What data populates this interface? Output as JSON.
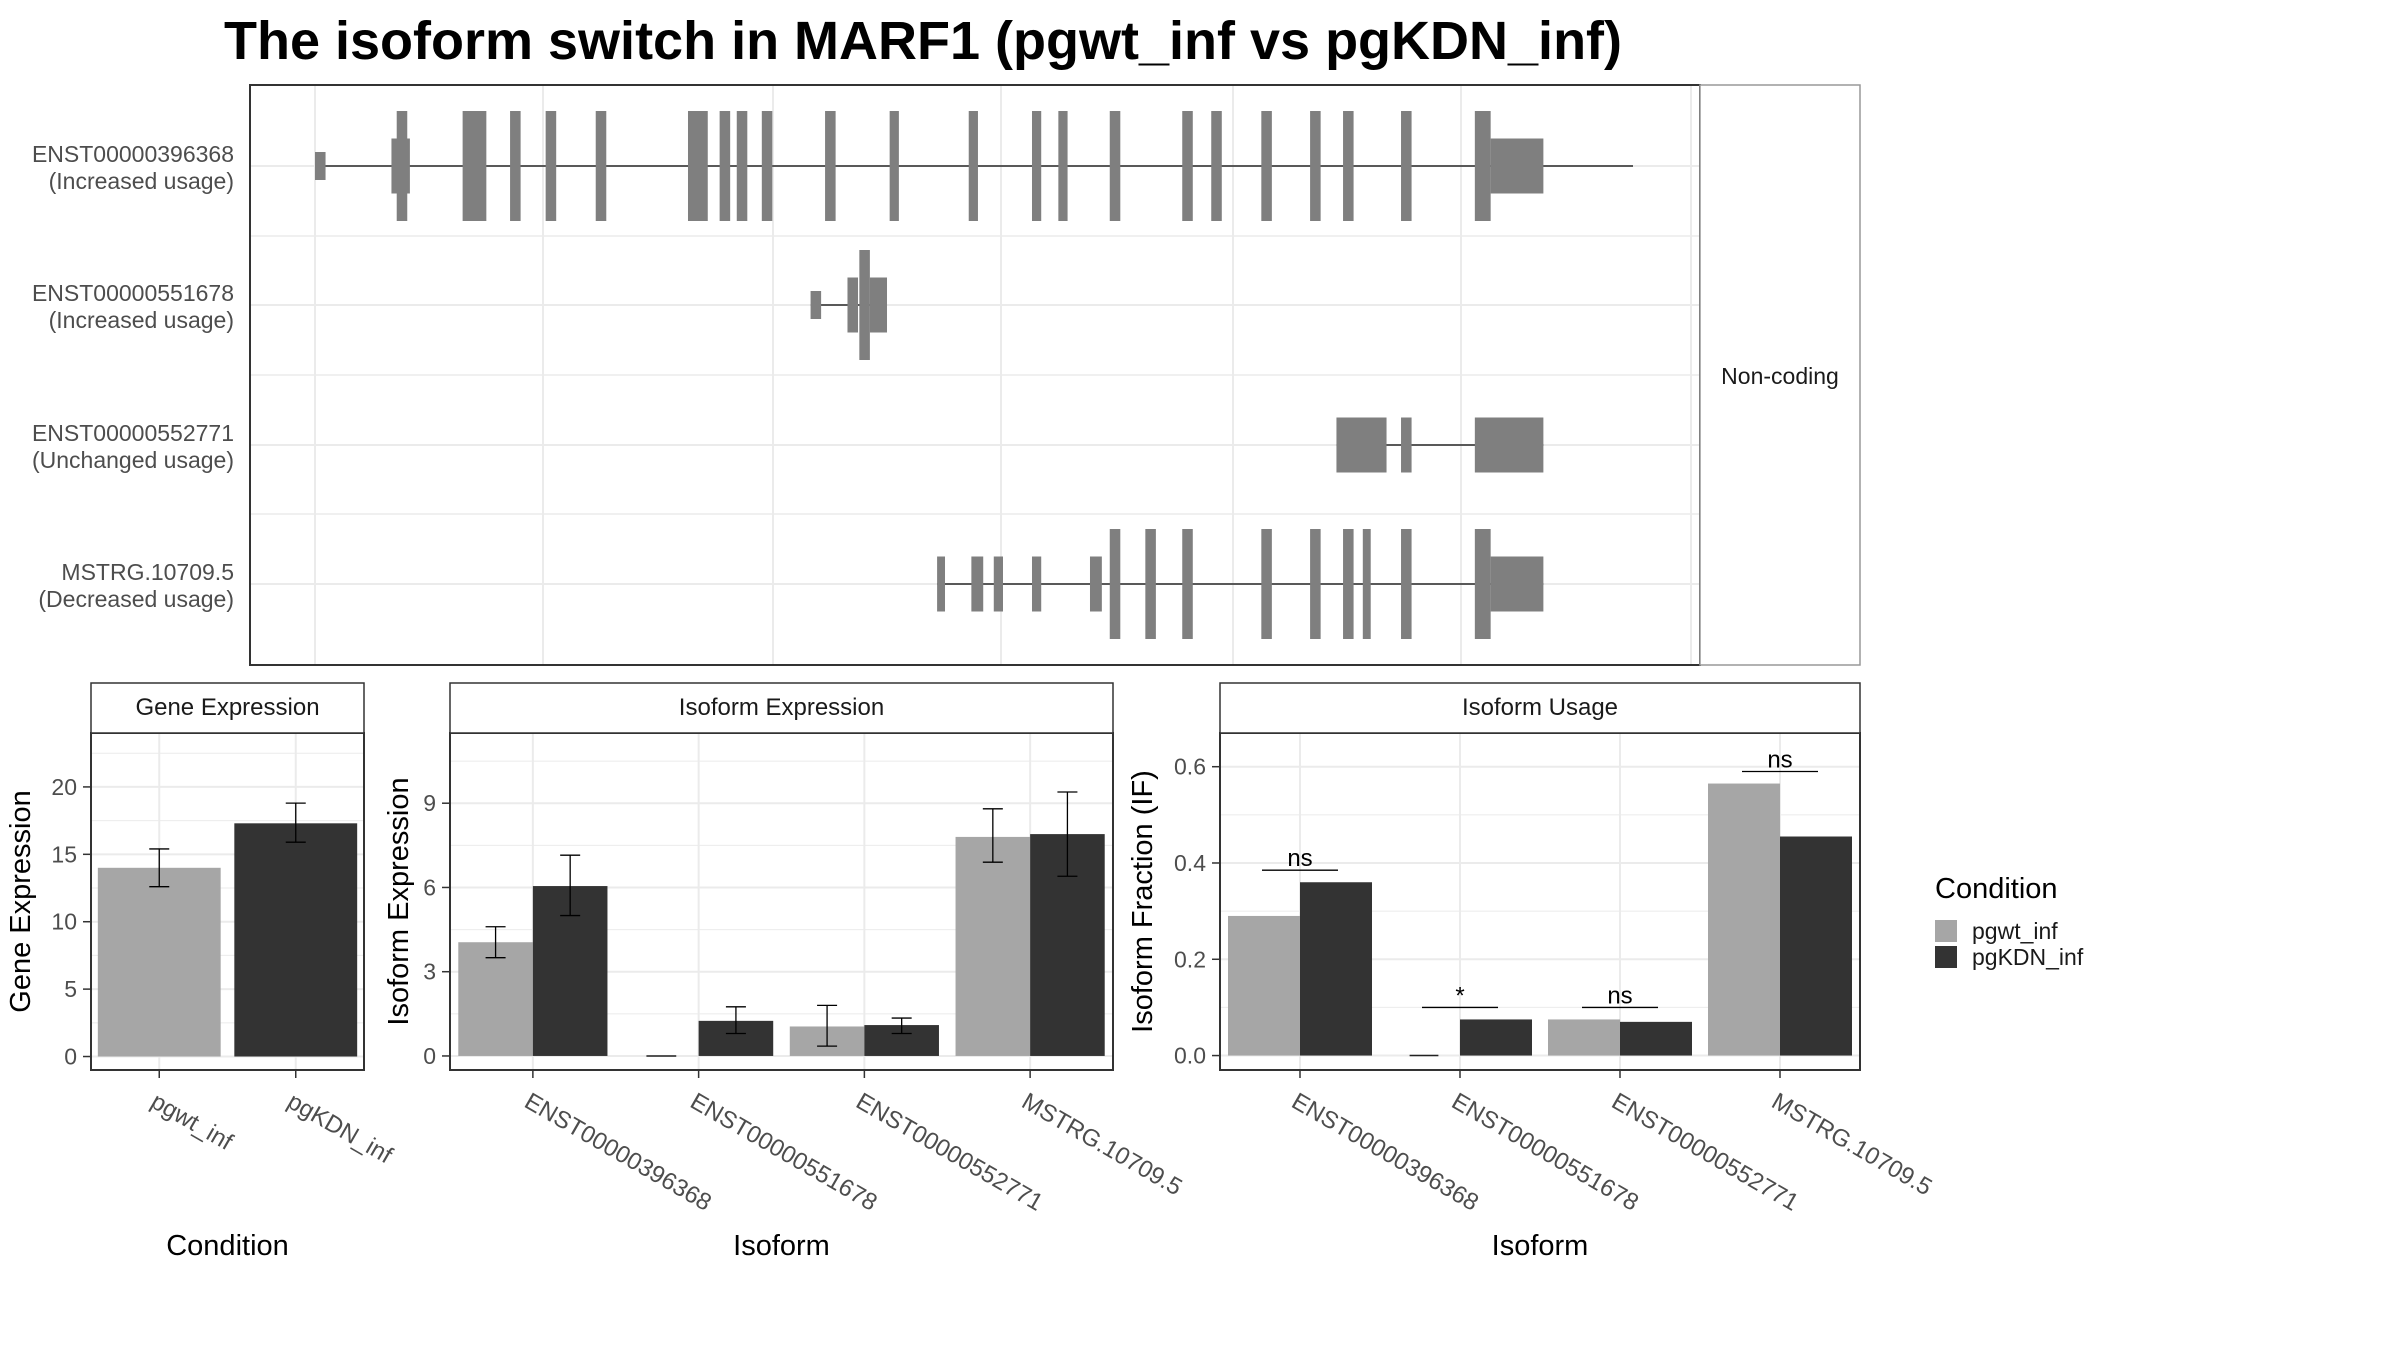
{
  "title": "The isoform switch in MARF1 (pgwt_inf vs pgKDN_inf)",
  "colors": {
    "pgwt_inf": "#a6a6a6",
    "pgKDN_inf": "#333333",
    "exon": "#7f7f7f",
    "intron": "#595959",
    "grid": "#ebebeb",
    "panel_border": "#333333",
    "strip_border": "#999999"
  },
  "chart_data": [
    {
      "type": "gene-structure",
      "strip_label": "Non-coding",
      "x_range": [
        0,
        1000
      ],
      "transcripts": [
        {
          "id": "ENST00000396368",
          "usage": "(Increased usage)",
          "intron": [
            0,
            1000
          ],
          "exons": [
            {
              "s": 0,
              "e": 8,
              "size": "s"
            },
            {
              "s": 58,
              "e": 72,
              "size": "m"
            },
            {
              "s": 62,
              "e": 70,
              "size": "l"
            },
            {
              "s": 112,
              "e": 130,
              "size": "l"
            },
            {
              "s": 148,
              "e": 156,
              "size": "l"
            },
            {
              "s": 175,
              "e": 183,
              "size": "l"
            },
            {
              "s": 213,
              "e": 221,
              "size": "l"
            },
            {
              "s": 283,
              "e": 298,
              "size": "l"
            },
            {
              "s": 307,
              "e": 315,
              "size": "l"
            },
            {
              "s": 320,
              "e": 328,
              "size": "l"
            },
            {
              "s": 339,
              "e": 347,
              "size": "l"
            },
            {
              "s": 387,
              "e": 395,
              "size": "l"
            },
            {
              "s": 436,
              "e": 443,
              "size": "l"
            },
            {
              "s": 496,
              "e": 503,
              "size": "l"
            },
            {
              "s": 544,
              "e": 551,
              "size": "l"
            },
            {
              "s": 564,
              "e": 571,
              "size": "l"
            },
            {
              "s": 603,
              "e": 611,
              "size": "l"
            },
            {
              "s": 658,
              "e": 666,
              "size": "l"
            },
            {
              "s": 680,
              "e": 688,
              "size": "l"
            },
            {
              "s": 718,
              "e": 726,
              "size": "l"
            },
            {
              "s": 755,
              "e": 763,
              "size": "l"
            },
            {
              "s": 780,
              "e": 788,
              "size": "l"
            },
            {
              "s": 824,
              "e": 832,
              "size": "l"
            },
            {
              "s": 880,
              "e": 892,
              "size": "l"
            },
            {
              "s": 892,
              "e": 932,
              "size": "m"
            }
          ]
        },
        {
          "id": "ENST00000551678",
          "usage": "(Increased usage)",
          "intron": [
            376,
            434
          ],
          "exons": [
            {
              "s": 376,
              "e": 384,
              "size": "s"
            },
            {
              "s": 404,
              "e": 412,
              "size": "m"
            },
            {
              "s": 413,
              "e": 421,
              "size": "l"
            },
            {
              "s": 421,
              "e": 434,
              "size": "m"
            }
          ]
        },
        {
          "id": "ENST00000552771",
          "usage": "(Unchanged usage)",
          "intron": [
            775,
            932
          ],
          "exons": [
            {
              "s": 775,
              "e": 813,
              "size": "m"
            },
            {
              "s": 824,
              "e": 832,
              "size": "m"
            },
            {
              "s": 880,
              "e": 932,
              "size": "m"
            }
          ]
        },
        {
          "id": "MSTRG.10709.5",
          "usage": "(Decreased usage)",
          "intron": [
            472,
            932
          ],
          "exons": [
            {
              "s": 472,
              "e": 478,
              "size": "m"
            },
            {
              "s": 498,
              "e": 507,
              "size": "m"
            },
            {
              "s": 515,
              "e": 522,
              "size": "m"
            },
            {
              "s": 544,
              "e": 551,
              "size": "m"
            },
            {
              "s": 588,
              "e": 597,
              "size": "m"
            },
            {
              "s": 603,
              "e": 611,
              "size": "l"
            },
            {
              "s": 630,
              "e": 638,
              "size": "l"
            },
            {
              "s": 658,
              "e": 666,
              "size": "l"
            },
            {
              "s": 718,
              "e": 726,
              "size": "l"
            },
            {
              "s": 755,
              "e": 763,
              "size": "l"
            },
            {
              "s": 780,
              "e": 788,
              "size": "l"
            },
            {
              "s": 795,
              "e": 801,
              "size": "l"
            },
            {
              "s": 824,
              "e": 832,
              "size": "l"
            },
            {
              "s": 880,
              "e": 892,
              "size": "l"
            },
            {
              "s": 892,
              "e": 932,
              "size": "m"
            }
          ]
        }
      ]
    },
    {
      "type": "bar",
      "strip_label": "Gene Expression",
      "xlabel": "Condition",
      "ylabel": "Gene Expression",
      "ylim": [
        -1,
        24
      ],
      "yticks": [
        0,
        5,
        10,
        15,
        20
      ],
      "categories": [
        "pgwt_inf",
        "pgKDN_inf"
      ],
      "bars": [
        {
          "category": "pgwt_inf",
          "condition": "pgwt_inf",
          "value": 14.0,
          "err": [
            12.6,
            15.4
          ]
        },
        {
          "category": "pgKDN_inf",
          "condition": "pgKDN_inf",
          "value": 17.3,
          "err": [
            15.9,
            18.8
          ]
        }
      ]
    },
    {
      "type": "bar",
      "strip_label": "Isoform Expression",
      "xlabel": "Isoform",
      "ylabel": "Isoform Expression",
      "ylim": [
        -0.5,
        11.5
      ],
      "yticks": [
        0,
        3,
        6,
        9
      ],
      "categories": [
        "ENST00000396368",
        "ENST00000551678",
        "ENST00000552771",
        "MSTRG.10709.5"
      ],
      "series": [
        {
          "name": "pgwt_inf",
          "values": [
            4.05,
            0.0,
            1.05,
            7.8
          ],
          "err": [
            [
              3.5,
              4.6
            ],
            [
              0.0,
              0.0
            ],
            [
              0.35,
              1.8
            ],
            [
              6.9,
              8.8
            ]
          ]
        },
        {
          "name": "pgKDN_inf",
          "values": [
            6.05,
            1.25,
            1.1,
            7.9
          ],
          "err": [
            [
              5.0,
              7.15
            ],
            [
              0.8,
              1.75
            ],
            [
              0.8,
              1.35
            ],
            [
              6.4,
              9.4
            ]
          ]
        }
      ]
    },
    {
      "type": "bar",
      "strip_label": "Isoform Usage",
      "xlabel": "Isoform",
      "ylabel": "Isoform Fraction (IF)",
      "ylim": [
        -0.03,
        0.67
      ],
      "yticks": [
        0.0,
        0.2,
        0.4,
        0.6
      ],
      "categories": [
        "ENST00000396368",
        "ENST00000551678",
        "ENST00000552771",
        "MSTRG.10709.5"
      ],
      "series": [
        {
          "name": "pgwt_inf",
          "values": [
            0.29,
            0.0,
            0.075,
            0.565
          ]
        },
        {
          "name": "pgKDN_inf",
          "values": [
            0.36,
            0.075,
            0.07,
            0.455
          ]
        }
      ],
      "annotations": [
        {
          "category": "ENST00000396368",
          "label": "ns",
          "y": 0.385
        },
        {
          "category": "ENST00000551678",
          "label": "*",
          "y": 0.1
        },
        {
          "category": "ENST00000552771",
          "label": "ns",
          "y": 0.1
        },
        {
          "category": "MSTRG.10709.5",
          "label": "ns",
          "y": 0.59
        }
      ]
    }
  ],
  "legend": {
    "title": "Condition",
    "items": [
      "pgwt_inf",
      "pgKDN_inf"
    ]
  }
}
